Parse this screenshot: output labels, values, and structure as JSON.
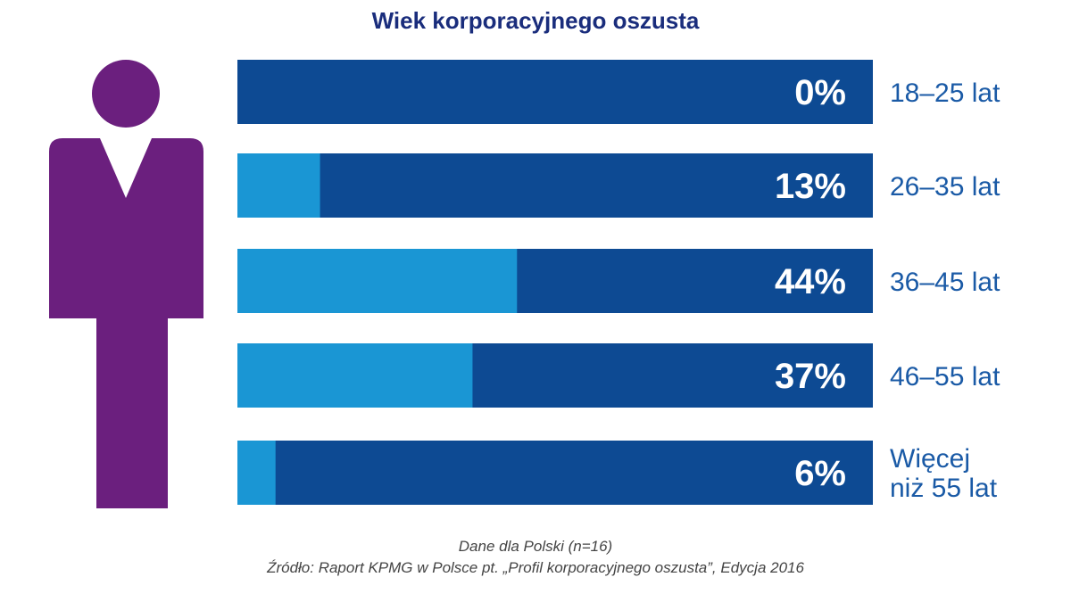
{
  "chart_data": {
    "type": "bar",
    "orientation": "horizontal",
    "title": "Wiek korporacyjnego oszusta",
    "categories": [
      [
        "18–25 lat"
      ],
      [
        "26–35 lat"
      ],
      [
        "36–45 lat"
      ],
      [
        "46–55 lat"
      ],
      [
        "Więcej",
        "niż 55 lat"
      ]
    ],
    "values": [
      0,
      13,
      44,
      37,
      6
    ],
    "value_labels": [
      "0%",
      "13%",
      "44%",
      "37%",
      "6%"
    ],
    "xlim": [
      0,
      100
    ],
    "unit": "%",
    "colors": {
      "fill": "#1a96d4",
      "track": "#0d4a93",
      "figure": "#6b1f7e",
      "label": "#1a5aa6"
    }
  },
  "footer": {
    "note": "Dane dla Polski (n=16)",
    "source": "Źródło: Raport KPMG w Polsce pt. „Profil korporacyjnego oszusta”, Edycja 2016"
  }
}
